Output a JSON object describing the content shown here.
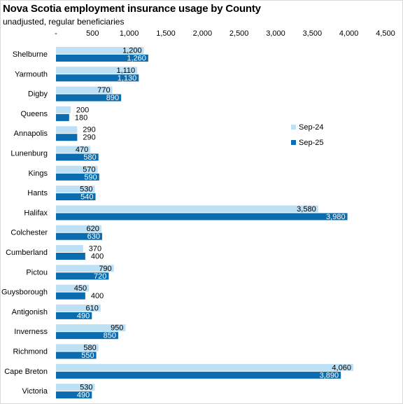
{
  "chart_data": {
    "type": "bar",
    "orientation": "horizontal",
    "title": "Nova Scotia employment insurance usage by County",
    "subtitle": "unadjusted, regular beneficiaries",
    "categories": [
      "Shelburne",
      "Yarmouth",
      "Digby",
      "Queens",
      "Annapolis",
      "Lunenburg",
      "Kings",
      "Hants",
      "Halifax",
      "Colchester",
      "Cumberland",
      "Pictou",
      "Guysborough",
      "Antigonish",
      "Inverness",
      "Richmond",
      "Cape Breton",
      "Victoria"
    ],
    "series": [
      {
        "name": "Sep-24",
        "color": "#bde0f5",
        "values": [
          1200,
          1110,
          770,
          200,
          290,
          470,
          570,
          530,
          3580,
          620,
          370,
          790,
          450,
          610,
          950,
          580,
          4060,
          530
        ]
      },
      {
        "name": "Sep-25",
        "color": "#0b6db0",
        "values": [
          1260,
          1130,
          890,
          180,
          290,
          580,
          590,
          540,
          3980,
          630,
          400,
          720,
          400,
          490,
          850,
          550,
          3890,
          490
        ]
      }
    ],
    "xlim": [
      0,
      4500
    ],
    "xticks": [
      0,
      500,
      1000,
      1500,
      2000,
      2500,
      3000,
      3500,
      4000,
      4500
    ],
    "xtick_labels": [
      "-",
      "500",
      "1,000",
      "1,500",
      "2,000",
      "2,500",
      "3,000",
      "3,500",
      "4,000",
      "4,500"
    ],
    "axis_position": "top",
    "grid": false,
    "legend_position": "right-middle"
  }
}
